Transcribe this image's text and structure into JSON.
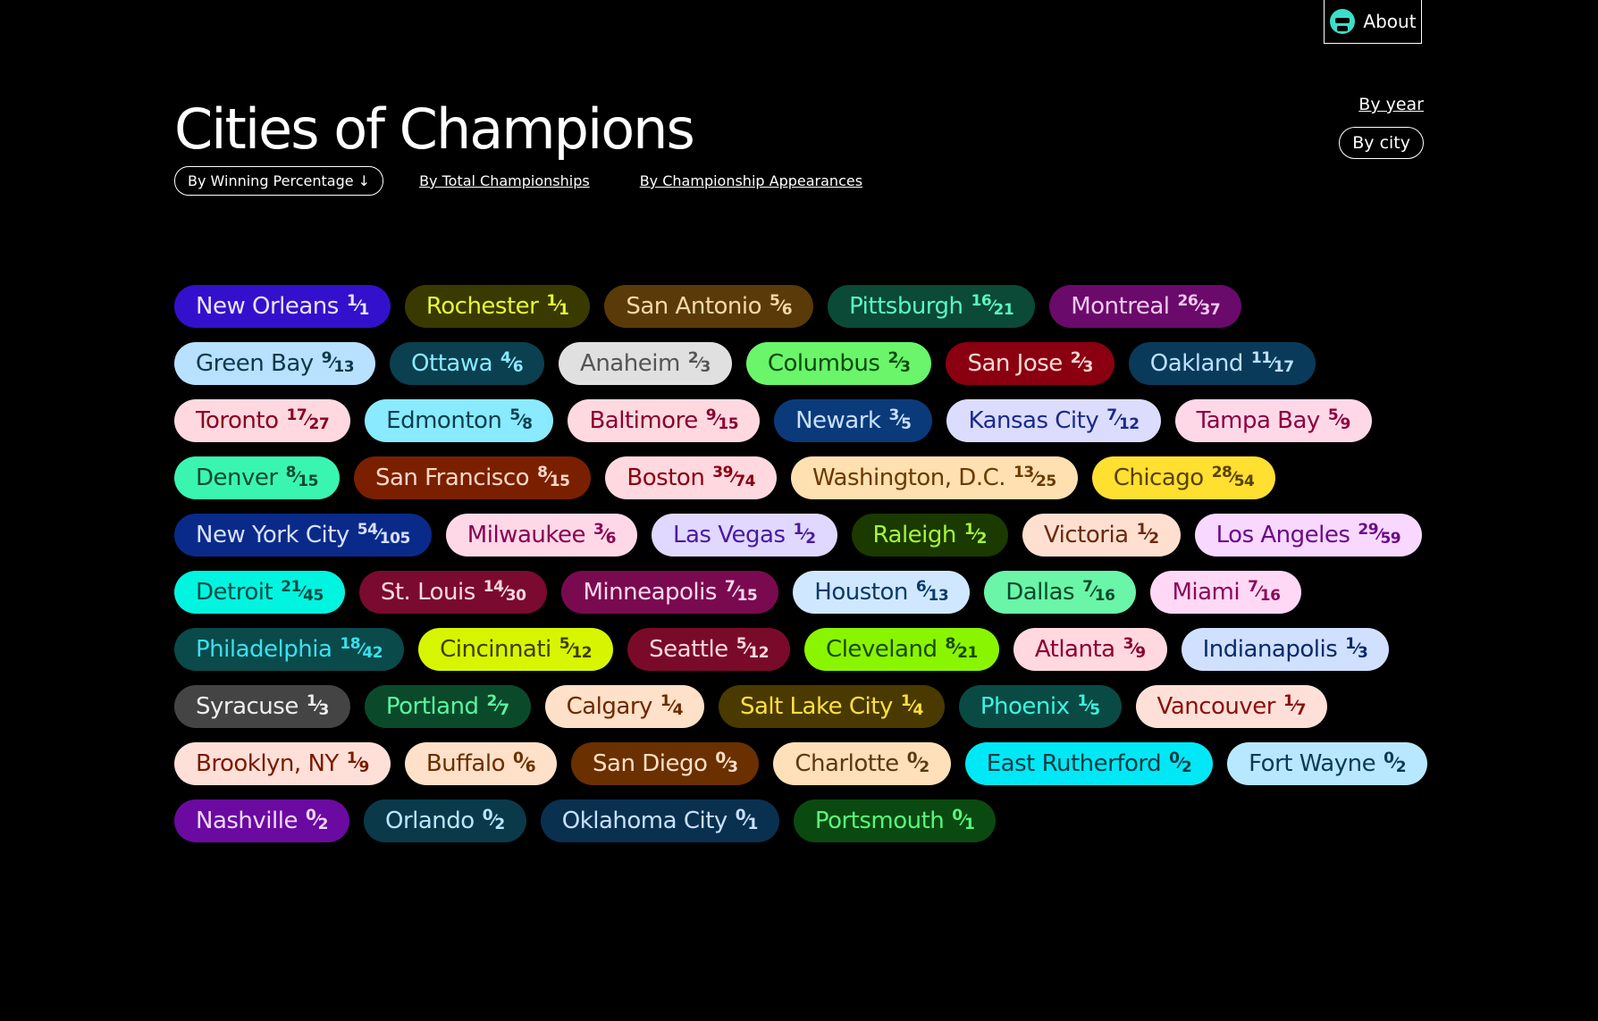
{
  "header": {
    "about": "About",
    "title": "Cities of Champions",
    "view_links": [
      "By year",
      "By city"
    ],
    "sort_options": [
      "By Winning Percentage",
      "By Total Championships",
      "By Championship Appearances"
    ]
  },
  "cities": [
    {
      "name": "New Orleans",
      "wins": 1,
      "total": 1,
      "bg": "#3311cc",
      "fg": "#e8e4ff"
    },
    {
      "name": "Rochester",
      "wins": 1,
      "total": 1,
      "bg": "#3a3a00",
      "fg": "#e8f53a"
    },
    {
      "name": "San Antonio",
      "wins": 5,
      "total": 6,
      "bg": "#5a3a08",
      "fg": "#f5d9a8"
    },
    {
      "name": "Pittsburgh",
      "wins": 16,
      "total": 21,
      "bg": "#0a4a36",
      "fg": "#5df5c0"
    },
    {
      "name": "Montreal",
      "wins": 26,
      "total": 37,
      "bg": "#6a0a6a",
      "fg": "#f5c8f5"
    },
    {
      "name": "Green Bay",
      "wins": 9,
      "total": 13,
      "bg": "#b8e0ff",
      "fg": "#0a3a4a"
    },
    {
      "name": "Ottawa",
      "wins": 4,
      "total": 6,
      "bg": "#0a4050",
      "fg": "#8aeaff"
    },
    {
      "name": "Anaheim",
      "wins": 2,
      "total": 3,
      "bg": "#e0e0e0",
      "fg": "#555555"
    },
    {
      "name": "Columbus",
      "wins": 2,
      "total": 3,
      "bg": "#6af56a",
      "fg": "#0a4a0a"
    },
    {
      "name": "San Jose",
      "wins": 2,
      "total": 3,
      "bg": "#8a0010",
      "fg": "#ffd8d8"
    },
    {
      "name": "Oakland",
      "wins": 11,
      "total": 17,
      "bg": "#0a3a5a",
      "fg": "#bde0ff"
    },
    {
      "name": "Toronto",
      "wins": 17,
      "total": 27,
      "bg": "#ffd8e0",
      "fg": "#8a0020"
    },
    {
      "name": "Edmonton",
      "wins": 5,
      "total": 8,
      "bg": "#8aeaff",
      "fg": "#0a4050"
    },
    {
      "name": "Baltimore",
      "wins": 9,
      "total": 15,
      "bg": "#ffd8e0",
      "fg": "#8a0030"
    },
    {
      "name": "Newark",
      "wins": 3,
      "total": 5,
      "bg": "#0a3a7a",
      "fg": "#c8e0ff"
    },
    {
      "name": "Kansas City",
      "wins": 7,
      "total": 12,
      "bg": "#dcdcff",
      "fg": "#1a2a8a"
    },
    {
      "name": "Tampa Bay",
      "wins": 5,
      "total": 9,
      "bg": "#ffd8e8",
      "fg": "#8a0040"
    },
    {
      "name": "Denver",
      "wins": 8,
      "total": 15,
      "bg": "#3af5b0",
      "fg": "#0a4a30"
    },
    {
      "name": "San Francisco",
      "wins": 8,
      "total": 15,
      "bg": "#7a2000",
      "fg": "#ffd8c8"
    },
    {
      "name": "Boston",
      "wins": 39,
      "total": 74,
      "bg": "#ffd8e0",
      "fg": "#8a0010"
    },
    {
      "name": "Washington, D.C.",
      "wins": 13,
      "total": 25,
      "bg": "#ffe0b0",
      "fg": "#6a3a00"
    },
    {
      "name": "Chicago",
      "wins": 28,
      "total": 54,
      "bg": "#ffe030",
      "fg": "#5a4000"
    },
    {
      "name": "New York City",
      "wins": 54,
      "total": 105,
      "bg": "#0a2a8a",
      "fg": "#d8e0ff"
    },
    {
      "name": "Milwaukee",
      "wins": 3,
      "total": 6,
      "bg": "#ffd8e8",
      "fg": "#8a0050"
    },
    {
      "name": "Las Vegas",
      "wins": 1,
      "total": 2,
      "bg": "#e0d8ff",
      "fg": "#4a1aa0"
    },
    {
      "name": "Raleigh",
      "wins": 1,
      "total": 2,
      "bg": "#1a3a00",
      "fg": "#a8f53a"
    },
    {
      "name": "Victoria",
      "wins": 1,
      "total": 2,
      "bg": "#ffe0d0",
      "fg": "#6a2a10"
    },
    {
      "name": "Los Angeles",
      "wins": 29,
      "total": 59,
      "bg": "#f8d8ff",
      "fg": "#6a0a8a"
    },
    {
      "name": "Detroit",
      "wins": 21,
      "total": 45,
      "bg": "#00f5e0",
      "fg": "#004a44"
    },
    {
      "name": "St. Louis",
      "wins": 14,
      "total": 30,
      "bg": "#7a0a30",
      "fg": "#ffd8e0"
    },
    {
      "name": "Minneapolis",
      "wins": 7,
      "total": 15,
      "bg": "#7a0a50",
      "fg": "#ffd8f0"
    },
    {
      "name": "Houston",
      "wins": 6,
      "total": 13,
      "bg": "#d0e8ff",
      "fg": "#0a3a6a"
    },
    {
      "name": "Dallas",
      "wins": 7,
      "total": 16,
      "bg": "#6af5a8",
      "fg": "#0a4a2a"
    },
    {
      "name": "Miami",
      "wins": 7,
      "total": 16,
      "bg": "#ffd8f5",
      "fg": "#8a0a5a"
    },
    {
      "name": "Philadelphia",
      "wins": 18,
      "total": 42,
      "bg": "#0a4a4a",
      "fg": "#3ae0f0"
    },
    {
      "name": "Cincinnati",
      "wins": 5,
      "total": 12,
      "bg": "#d8f500",
      "fg": "#3a4000"
    },
    {
      "name": "Seattle",
      "wins": 5,
      "total": 12,
      "bg": "#7a0a2a",
      "fg": "#ffd8e0"
    },
    {
      "name": "Cleveland",
      "wins": 8,
      "total": 21,
      "bg": "#8af500",
      "fg": "#1a4a00"
    },
    {
      "name": "Atlanta",
      "wins": 3,
      "total": 9,
      "bg": "#ffd8e0",
      "fg": "#8a0030"
    },
    {
      "name": "Indianapolis",
      "wins": 1,
      "total": 3,
      "bg": "#d0e0ff",
      "fg": "#0a2a6a"
    },
    {
      "name": "Syracuse",
      "wins": 1,
      "total": 3,
      "bg": "#444444",
      "fg": "#eeeeee"
    },
    {
      "name": "Portland",
      "wins": 2,
      "total": 7,
      "bg": "#0a4a2a",
      "fg": "#5af5a0"
    },
    {
      "name": "Calgary",
      "wins": 1,
      "total": 4,
      "bg": "#ffe0c8",
      "fg": "#6a2a00"
    },
    {
      "name": "Salt Lake City",
      "wins": 1,
      "total": 4,
      "bg": "#4a3a00",
      "fg": "#ffe040"
    },
    {
      "name": "Phoenix",
      "wins": 1,
      "total": 5,
      "bg": "#0a4a44",
      "fg": "#3af5e0"
    },
    {
      "name": "Vancouver",
      "wins": 1,
      "total": 7,
      "bg": "#ffe0d8",
      "fg": "#8a1010"
    },
    {
      "name": "Brooklyn, NY",
      "wins": 1,
      "total": 9,
      "bg": "#ffe0d8",
      "fg": "#7a1a00"
    },
    {
      "name": "Buffalo",
      "wins": 0,
      "total": 6,
      "bg": "#ffe0c8",
      "fg": "#6a3000"
    },
    {
      "name": "San Diego",
      "wins": 0,
      "total": 3,
      "bg": "#6a3000",
      "fg": "#ffe0c8"
    },
    {
      "name": "Charlotte",
      "wins": 0,
      "total": 2,
      "bg": "#ffe0b8",
      "fg": "#5a3a10"
    },
    {
      "name": "East Rutherford",
      "wins": 0,
      "total": 2,
      "bg": "#00e8f5",
      "fg": "#0a3a44"
    },
    {
      "name": "Fort Wayne",
      "wins": 0,
      "total": 2,
      "bg": "#b8e8ff",
      "fg": "#0a3a5a"
    },
    {
      "name": "Nashville",
      "wins": 0,
      "total": 2,
      "bg": "#6a0aa0",
      "fg": "#f0d8ff"
    },
    {
      "name": "Orlando",
      "wins": 0,
      "total": 2,
      "bg": "#0a3a4a",
      "fg": "#b8e8ff"
    },
    {
      "name": "Oklahoma City",
      "wins": 0,
      "total": 1,
      "bg": "#0a3050",
      "fg": "#c8e0ff"
    },
    {
      "name": "Portsmouth",
      "wins": 0,
      "total": 1,
      "bg": "#0a4a10",
      "fg": "#5af580"
    }
  ]
}
